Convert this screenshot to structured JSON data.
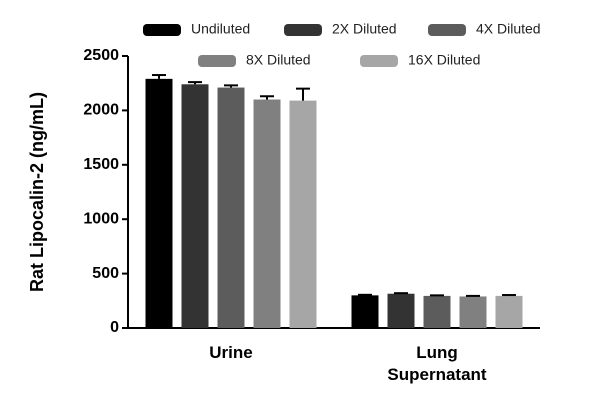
{
  "chart_data": {
    "type": "bar",
    "y_label": "Rat Lipocalin-2 (ng/mL)",
    "categories": [
      "Urine",
      "Lung Supernatant"
    ],
    "series": [
      {
        "name": "Undiluted",
        "color": "#000000",
        "values": [
          2290,
          300
        ],
        "errors": [
          35,
          5
        ]
      },
      {
        "name": "2X Diluted",
        "color": "#333333",
        "values": [
          2240,
          315
        ],
        "errors": [
          20,
          5
        ]
      },
      {
        "name": "4X Diluted",
        "color": "#5c5c5c",
        "values": [
          2210,
          295
        ],
        "errors": [
          20,
          5
        ]
      },
      {
        "name": "8X Diluted",
        "color": "#808080",
        "values": [
          2100,
          290
        ],
        "errors": [
          30,
          5
        ]
      },
      {
        "name": "16X Diluted",
        "color": "#a6a6a6",
        "values": [
          2090,
          295
        ],
        "errors": [
          110,
          8
        ]
      }
    ],
    "ylim": [
      0,
      2500
    ],
    "yticks": [
      0,
      500,
      1000,
      1500,
      2000,
      2500
    ],
    "grid": false
  }
}
